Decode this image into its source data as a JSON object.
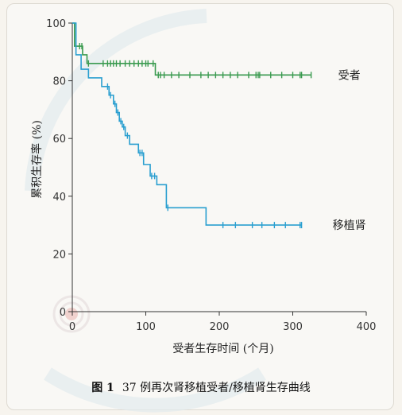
{
  "caption": {
    "figure_label": "图 1",
    "text": "37 例再次肾移植受者/移植肾生存曲线"
  },
  "colors": {
    "recipient": "#3a9a4f",
    "graft": "#2a9fd0",
    "axis": "#333333",
    "watermark": "#dfe9ec"
  },
  "chart_data": {
    "type": "line",
    "step": true,
    "xlabel": "受者生存时间 (个月)",
    "ylabel": "累积生存率 (%)",
    "xlim": [
      0,
      400
    ],
    "ylim": [
      0,
      100
    ],
    "xticks": [
      0,
      100,
      200,
      300,
      400
    ],
    "yticks": [
      0,
      20,
      40,
      60,
      80,
      100
    ],
    "grid": false,
    "legend": "labels at line ends (right)",
    "series": [
      {
        "name": "受者",
        "color": "#3a9a4f",
        "steps": [
          [
            0,
            100
          ],
          [
            3,
            92
          ],
          [
            14,
            89
          ],
          [
            20,
            86
          ],
          [
            113,
            82
          ],
          [
            325,
            82
          ]
        ],
        "censored": [
          10,
          13,
          22,
          42,
          48,
          52,
          56,
          60,
          65,
          72,
          78,
          84,
          90,
          95,
          100,
          103,
          110,
          117,
          120,
          125,
          135,
          145,
          160,
          175,
          185,
          195,
          205,
          215,
          225,
          240,
          250,
          253,
          255,
          270,
          285,
          300,
          310,
          312,
          325
        ]
      },
      {
        "name": "移植肾",
        "color": "#2a9fd0",
        "steps": [
          [
            0,
            100
          ],
          [
            5,
            89
          ],
          [
            12,
            84
          ],
          [
            22,
            81
          ],
          [
            40,
            78
          ],
          [
            50,
            75
          ],
          [
            56,
            72
          ],
          [
            60,
            69
          ],
          [
            64,
            66
          ],
          [
            68,
            64
          ],
          [
            72,
            61
          ],
          [
            78,
            58
          ],
          [
            90,
            55
          ],
          [
            97,
            51
          ],
          [
            106,
            47
          ],
          [
            115,
            44
          ],
          [
            128,
            36
          ],
          [
            182,
            30
          ],
          [
            312,
            30
          ]
        ],
        "censored": [
          48,
          52,
          58,
          62,
          66,
          70,
          75,
          92,
          95,
          108,
          112,
          130,
          205,
          222,
          245,
          258,
          275,
          290,
          310,
          312
        ]
      }
    ]
  }
}
